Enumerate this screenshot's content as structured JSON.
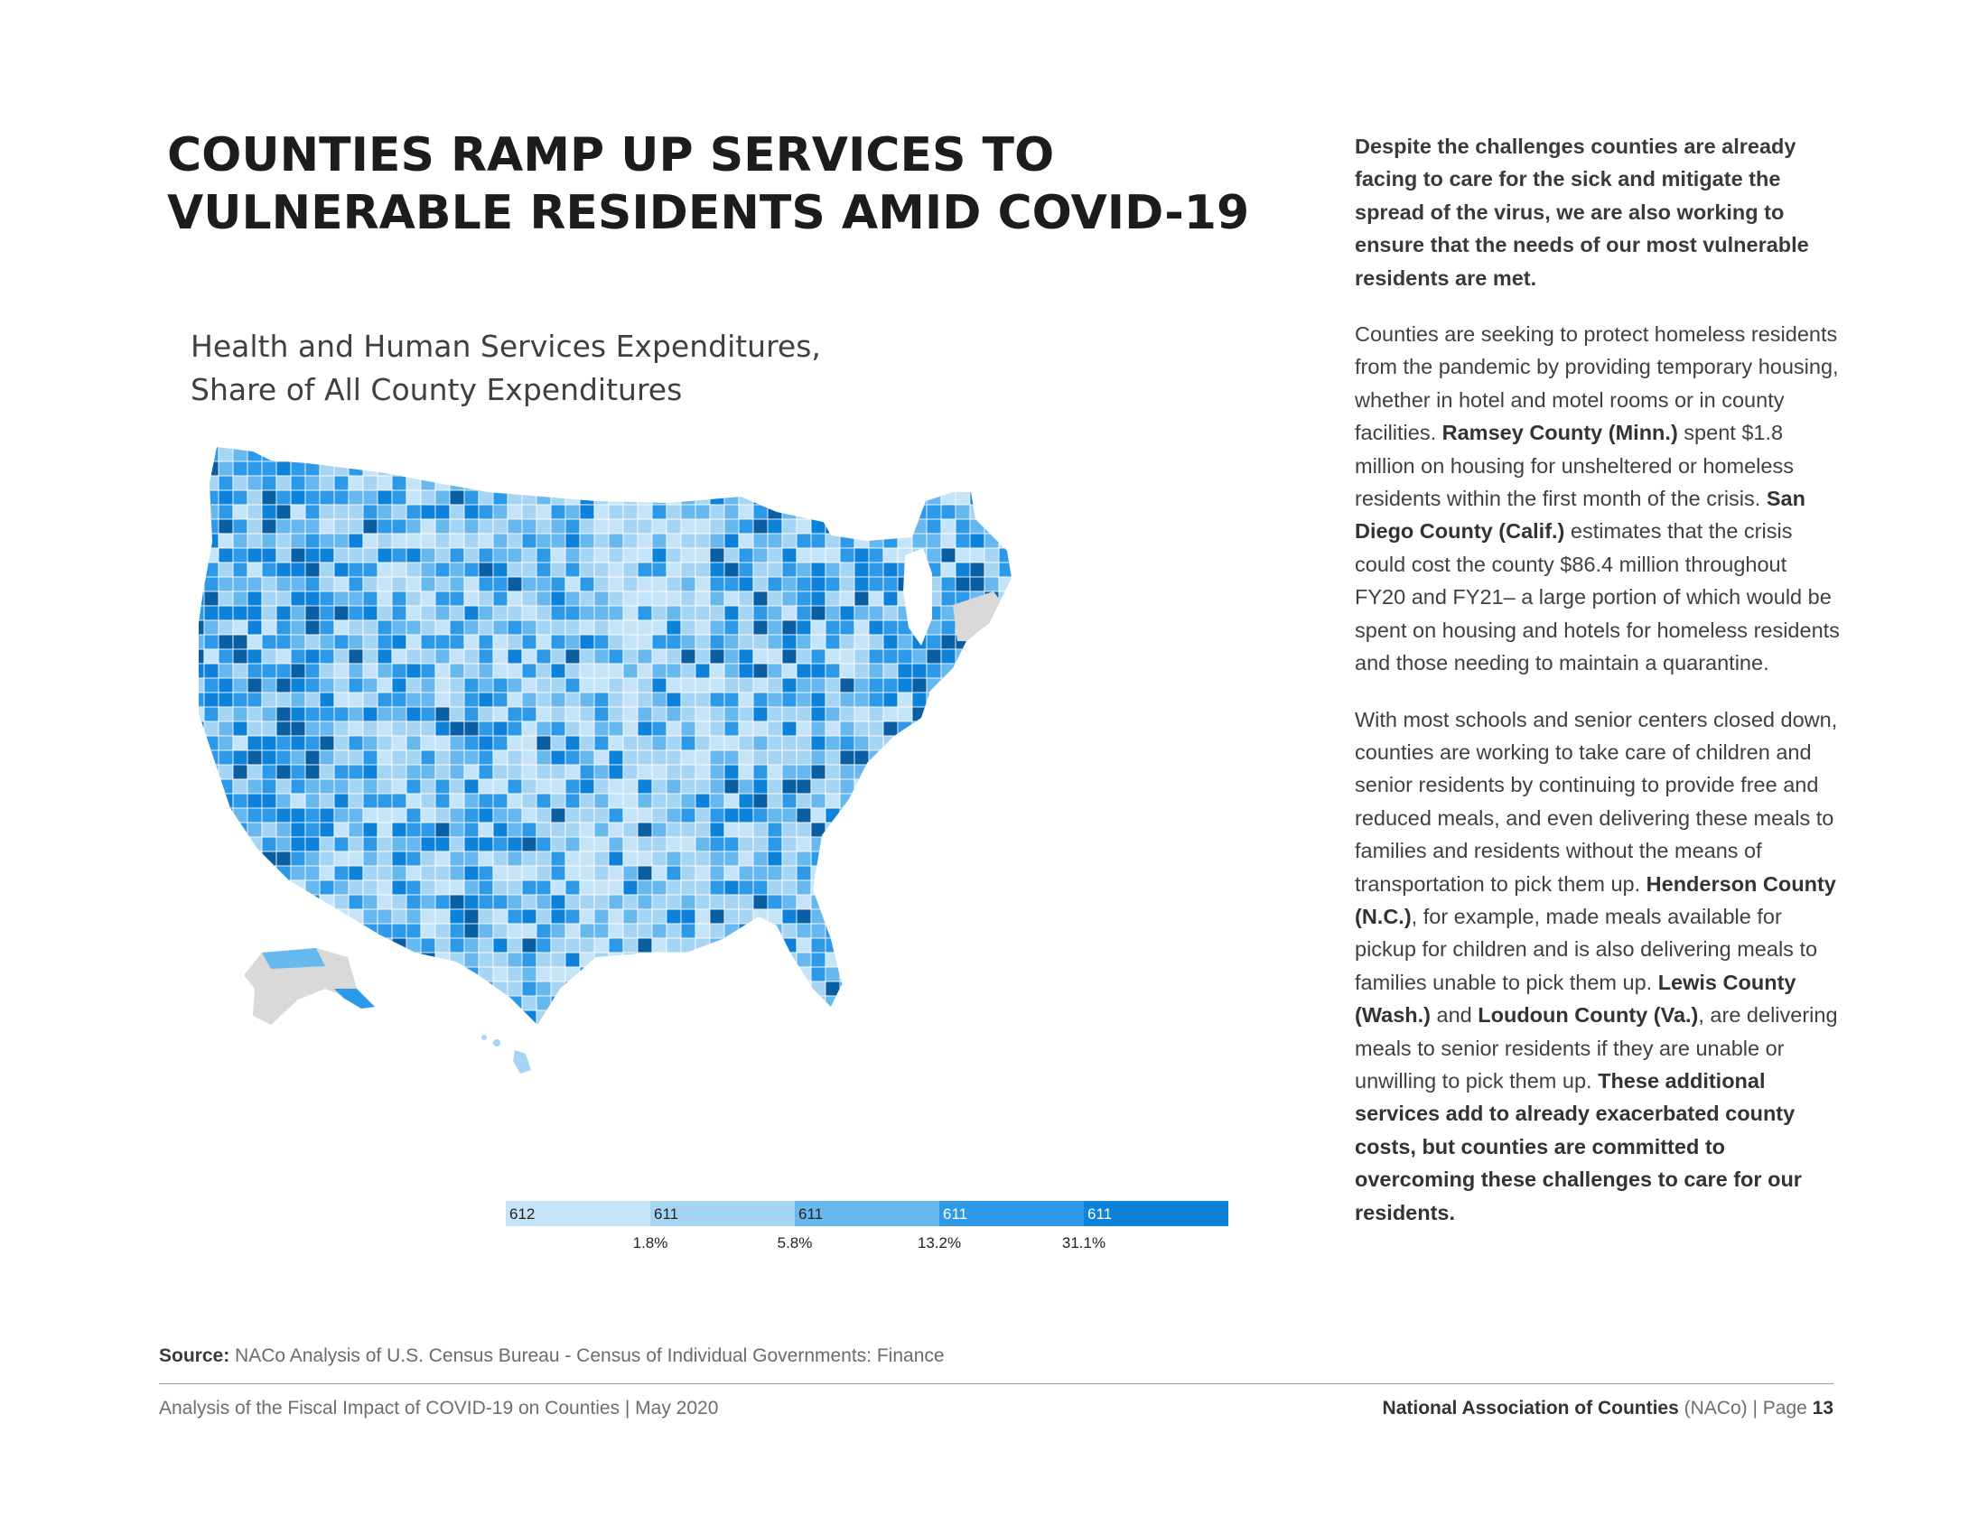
{
  "title": {
    "line1": "COUNTIES RAMP UP SERVICES TO",
    "line2": "VULNERABLE RESIDENTS AMID COVID-19"
  },
  "chart_title": {
    "line1": "Health and Human Services Expenditures,",
    "line2": "Share of All County Expenditures"
  },
  "chart_data": {
    "type": "choropleth",
    "title": "Health and Human Services Expenditures, Share of All County Expenditures",
    "legend": {
      "bins": [
        {
          "count": "612",
          "color": "#c6e4f7"
        },
        {
          "count": "611",
          "color": "#a6d4f3"
        },
        {
          "count": "611",
          "color": "#66b8ee"
        },
        {
          "count": "611",
          "color": "#2c9ae8"
        },
        {
          "count": "611",
          "color": "#0d82db"
        },
        {
          "count": "",
          "color": "#0a5fa3"
        }
      ],
      "breaks": [
        "1.8%",
        "5.8%",
        "13.2%",
        "31.1%"
      ],
      "no_data_color": "#d9d9d9"
    }
  },
  "source": {
    "label": "Source:",
    "text": " NACo Analysis of U.S. Census Bureau - Census of Individual Governments: Finance"
  },
  "footer": {
    "left": "Analysis of the Fiscal Impact of COVID-19 on Counties | May 2020",
    "org": "National Association of Counties",
    "abbr": " (NACo) | Page ",
    "page": "13"
  },
  "body": {
    "lead": "Despite the challenges counties are already facing to care for the sick and mitigate the spread of the virus, we are also working to ensure that the needs of our most vulnerable residents are met.",
    "p2": [
      {
        "t": "Counties are seeking to protect homeless residents from the pandemic by providing temporary housing, whether in hotel and motel rooms or in county facilities. "
      },
      {
        "t": "Ramsey County (Minn.)",
        "b": true
      },
      {
        "t": " spent $1.8 million on housing for unsheltered or homeless residents within the first month of the crisis. "
      },
      {
        "t": "San Diego County (Calif.)",
        "b": true
      },
      {
        "t": " estimates that the crisis could cost the county $86.4 million throughout FY20 and FY21– a large portion of which would be spent on housing and hotels for homeless residents and those needing to maintain a quarantine."
      }
    ],
    "p3": [
      {
        "t": "With most schools and senior centers closed down, counties are working to take care of children and senior residents by continuing to provide free and reduced meals, and even delivering these meals to families and residents without the means of transportation to pick them up. "
      },
      {
        "t": "Henderson County (N.C.)",
        "b": true
      },
      {
        "t": ", for example, made meals available for pickup for children and is also delivering meals to families unable to pick them up. "
      },
      {
        "t": "Lewis County (Wash.)",
        "b": true
      },
      {
        "t": " and "
      },
      {
        "t": "Loudoun County (Va.)",
        "b": true
      },
      {
        "t": ", are delivering meals to senior residents if they are unable or unwilling to pick them up. "
      },
      {
        "t": "These additional services add to already exacerbated county costs, but counties are committed to overcoming these challenges to care for our residents.",
        "b": true
      }
    ]
  }
}
